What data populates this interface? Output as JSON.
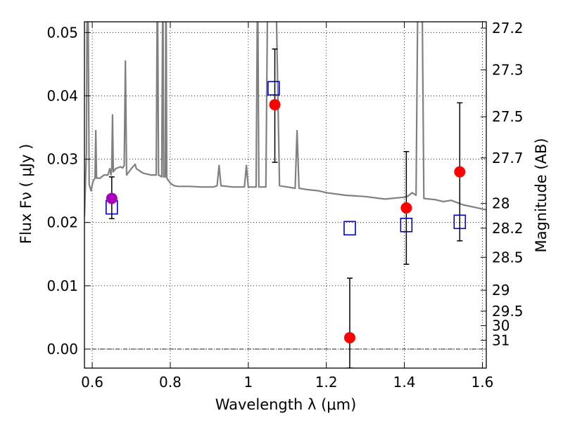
{
  "chart_data": {
    "type": "scatter",
    "xlabel": "Wavelength  λ (μm)",
    "ylabel": "Flux  Fν  ( μJy )",
    "y2label": "Magnitude (AB)",
    "xlim": [
      0.58,
      1.61
    ],
    "ylim": [
      -0.003,
      0.0517
    ],
    "grid": true,
    "x_ticks": [
      {
        "v": 0.6,
        "label": "0.6"
      },
      {
        "v": 0.8,
        "label": "0.8"
      },
      {
        "v": 1.0,
        "label": "1"
      },
      {
        "v": 1.2,
        "label": "1.2"
      },
      {
        "v": 1.4,
        "label": "1.4"
      },
      {
        "v": 1.6,
        "label": "1.6"
      }
    ],
    "y_ticks": [
      {
        "v": 0.0,
        "label": "0.00"
      },
      {
        "v": 0.01,
        "label": "0.01"
      },
      {
        "v": 0.02,
        "label": "0.02"
      },
      {
        "v": 0.03,
        "label": "0.03"
      },
      {
        "v": 0.04,
        "label": "0.04"
      },
      {
        "v": 0.05,
        "label": "0.05"
      }
    ],
    "magnitude_ticks": [
      {
        "v": 0.0507,
        "label": "27.2"
      },
      {
        "v": 0.0441,
        "label": "27.3"
      },
      {
        "v": 0.0367,
        "label": "27.5"
      },
      {
        "v": 0.0302,
        "label": "27.7"
      },
      {
        "v": 0.023,
        "label": "28"
      },
      {
        "v": 0.0191,
        "label": "28.2"
      },
      {
        "v": 0.0145,
        "label": "28.5"
      },
      {
        "v": 0.0093,
        "label": "29"
      },
      {
        "v": 0.006,
        "label": "29.5"
      },
      {
        "v": 0.0037,
        "label": "30"
      },
      {
        "v": 0.0014,
        "label": "31"
      }
    ],
    "zero_line": 0.0,
    "observed": {
      "color": "#ff0000",
      "points": [
        {
          "x": 1.068,
          "y": 0.0386,
          "yerr_low": 0.0295,
          "yerr_high": 0.0474
        },
        {
          "x": 1.26,
          "y": 0.0018,
          "yerr_low": -0.003,
          "yerr_high": 0.0112
        },
        {
          "x": 1.405,
          "y": 0.0223,
          "yerr_low": 0.0134,
          "yerr_high": 0.0312
        },
        {
          "x": 1.542,
          "y": 0.028,
          "yerr_low": 0.0171,
          "yerr_high": 0.0389
        }
      ]
    },
    "optical_point": {
      "color": "#aa00bb",
      "x": 0.65,
      "y": 0.0238,
      "yerr_low": 0.0206,
      "yerr_high": 0.0272
    },
    "model_photometry": {
      "color": "#0000cc",
      "points": [
        {
          "x": 0.65,
          "y": 0.0224
        },
        {
          "x": 1.065,
          "y": 0.0412
        },
        {
          "x": 1.26,
          "y": 0.0191
        },
        {
          "x": 1.405,
          "y": 0.0196
        },
        {
          "x": 1.542,
          "y": 0.0201
        }
      ]
    },
    "template_spectrum": {
      "color": "#808080",
      "points": [
        [
          0.58,
          0.021
        ],
        [
          0.585,
          0.031
        ],
        [
          0.588,
          0.07
        ],
        [
          0.592,
          0.026
        ],
        [
          0.597,
          0.025
        ],
        [
          0.602,
          0.0265
        ],
        [
          0.607,
          0.027
        ],
        [
          0.609,
          0.0345
        ],
        [
          0.611,
          0.027
        ],
        [
          0.62,
          0.027
        ],
        [
          0.63,
          0.0275
        ],
        [
          0.64,
          0.0275
        ],
        [
          0.645,
          0.0285
        ],
        [
          0.648,
          0.0275
        ],
        [
          0.65,
          0.0285
        ],
        [
          0.652,
          0.037
        ],
        [
          0.654,
          0.028
        ],
        [
          0.66,
          0.0285
        ],
        [
          0.672,
          0.0288
        ],
        [
          0.678,
          0.0286
        ],
        [
          0.682,
          0.029
        ],
        [
          0.685,
          0.0455
        ],
        [
          0.688,
          0.0275
        ],
        [
          0.7,
          0.0285
        ],
        [
          0.71,
          0.0292
        ],
        [
          0.713,
          0.0285
        ],
        [
          0.73,
          0.0278
        ],
        [
          0.75,
          0.0275
        ],
        [
          0.764,
          0.0275
        ],
        [
          0.767,
          0.06
        ],
        [
          0.77,
          0.0275
        ],
        [
          0.778,
          0.0272
        ],
        [
          0.781,
          0.06
        ],
        [
          0.783,
          0.0272
        ],
        [
          0.787,
          0.0272
        ],
        [
          0.789,
          0.06
        ],
        [
          0.791,
          0.027
        ],
        [
          0.8,
          0.0262
        ],
        [
          0.81,
          0.0258
        ],
        [
          0.82,
          0.0257
        ],
        [
          0.85,
          0.0257
        ],
        [
          0.88,
          0.0256
        ],
        [
          0.91,
          0.0256
        ],
        [
          0.92,
          0.0258
        ],
        [
          0.925,
          0.029
        ],
        [
          0.93,
          0.0258
        ],
        [
          0.96,
          0.0256
        ],
        [
          0.99,
          0.0256
        ],
        [
          0.995,
          0.029
        ],
        [
          1.0,
          0.0256
        ],
        [
          1.02,
          0.0256
        ],
        [
          1.024,
          0.06
        ],
        [
          1.027,
          0.0256
        ],
        [
          1.045,
          0.0256
        ],
        [
          1.05,
          0.06
        ],
        [
          1.07,
          0.06
        ],
        [
          1.08,
          0.0258
        ],
        [
          1.1,
          0.0256
        ],
        [
          1.12,
          0.0254
        ],
        [
          1.125,
          0.0345
        ],
        [
          1.13,
          0.0254
        ],
        [
          1.15,
          0.0252
        ],
        [
          1.18,
          0.025
        ],
        [
          1.2,
          0.0247
        ],
        [
          1.25,
          0.0243
        ],
        [
          1.3,
          0.0241
        ],
        [
          1.35,
          0.0237
        ],
        [
          1.4,
          0.024
        ],
        [
          1.41,
          0.0242
        ],
        [
          1.42,
          0.0247
        ],
        [
          1.43,
          0.0243
        ],
        [
          1.435,
          0.06
        ],
        [
          1.445,
          0.06
        ],
        [
          1.45,
          0.0238
        ],
        [
          1.48,
          0.0236
        ],
        [
          1.5,
          0.0233
        ],
        [
          1.52,
          0.0235
        ],
        [
          1.55,
          0.0228
        ],
        [
          1.58,
          0.0224
        ],
        [
          1.61,
          0.022
        ]
      ]
    }
  }
}
